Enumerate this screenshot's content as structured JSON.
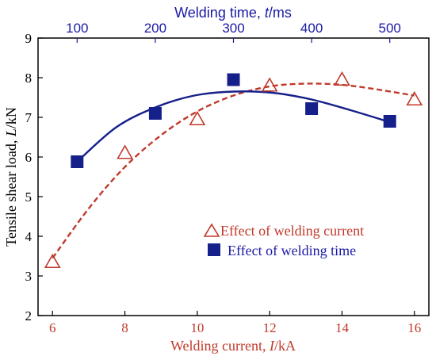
{
  "colors": {
    "current": "#c0392b",
    "time": "#16208a",
    "axis_left": "#000000",
    "axis_top": "#1a1aa6"
  },
  "chart_data": {
    "type": "scatter",
    "x_bottom": {
      "label": "Welding current,  I/kA",
      "label_prefix": "Welding current,  ",
      "label_var": "I",
      "label_unit": "/kA",
      "ticks": [
        "6",
        "8",
        "10",
        "12",
        "14",
        "16"
      ],
      "tick_values": [
        6,
        8,
        10,
        12,
        14,
        16
      ],
      "range": [
        5.6,
        16.4
      ]
    },
    "x_top": {
      "label": "Welding time,  t/ms",
      "label_prefix": "Welding time,  ",
      "label_var": "t",
      "label_unit": "/ms",
      "ticks": [
        "100",
        "200",
        "300",
        "400",
        "500"
      ],
      "tick_values": [
        100,
        200,
        300,
        400,
        500
      ],
      "range": [
        50,
        550
      ]
    },
    "y": {
      "label": "Tensile shear load,  L/kN",
      "label_prefix": "Tensile shear load,  ",
      "label_var": "L",
      "label_unit": "/kN",
      "ticks": [
        "2",
        "3",
        "4",
        "5",
        "6",
        "7",
        "8",
        "9"
      ],
      "tick_values": [
        2,
        3,
        4,
        5,
        6,
        7,
        8,
        9
      ],
      "range": [
        2,
        9
      ]
    },
    "series": [
      {
        "name": "Effect of welding current",
        "axis": "bottom",
        "marker": "open-triangle",
        "line": "dashed",
        "points": [
          {
            "x": 6.0,
            "y": 3.35
          },
          {
            "x": 8.0,
            "y": 6.1
          },
          {
            "x": 10.0,
            "y": 6.95
          },
          {
            "x": 12.0,
            "y": 7.8
          },
          {
            "x": 14.0,
            "y": 7.95
          },
          {
            "x": 16.0,
            "y": 7.45
          }
        ],
        "fit": [
          {
            "x": 6.0,
            "y": 3.45
          },
          {
            "x": 7.0,
            "y": 4.7
          },
          {
            "x": 8.0,
            "y": 5.75
          },
          {
            "x": 9.0,
            "y": 6.55
          },
          {
            "x": 10.0,
            "y": 7.15
          },
          {
            "x": 11.0,
            "y": 7.55
          },
          {
            "x": 12.0,
            "y": 7.78
          },
          {
            "x": 13.0,
            "y": 7.85
          },
          {
            "x": 14.0,
            "y": 7.82
          },
          {
            "x": 15.0,
            "y": 7.7
          },
          {
            "x": 16.0,
            "y": 7.55
          }
        ]
      },
      {
        "name": "Effect of welding time",
        "axis": "top",
        "marker": "filled-square",
        "line": "solid",
        "points": [
          {
            "x": 100,
            "y": 5.88
          },
          {
            "x": 200,
            "y": 7.1
          },
          {
            "x": 300,
            "y": 7.95
          },
          {
            "x": 400,
            "y": 7.22
          },
          {
            "x": 500,
            "y": 6.9
          }
        ],
        "fit": [
          {
            "x": 100,
            "y": 5.88
          },
          {
            "x": 150,
            "y": 6.75
          },
          {
            "x": 200,
            "y": 7.25
          },
          {
            "x": 250,
            "y": 7.55
          },
          {
            "x": 300,
            "y": 7.65
          },
          {
            "x": 350,
            "y": 7.62
          },
          {
            "x": 400,
            "y": 7.45
          },
          {
            "x": 450,
            "y": 7.18
          },
          {
            "x": 500,
            "y": 6.88
          }
        ]
      }
    ],
    "legend": {
      "placement": "lower-right",
      "entries": [
        "Effect of welding current",
        "Effect of welding time"
      ]
    },
    "grid": false
  }
}
